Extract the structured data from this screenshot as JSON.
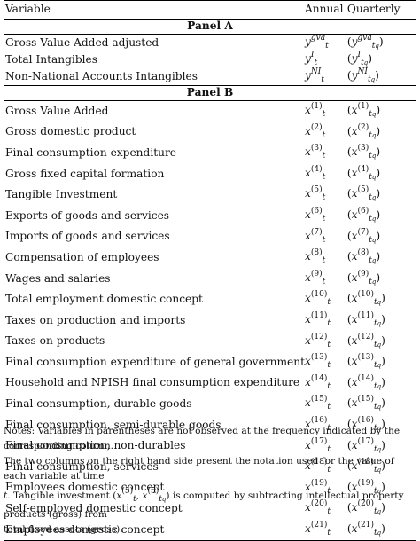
{
  "header": {
    "variable": "Variable",
    "annual": "Annual",
    "quarterly": "Quarterly"
  },
  "panel_a": {
    "title": "Panel A",
    "rows": [
      {
        "label": "Gross Value Added adjusted",
        "sup": "gva"
      },
      {
        "label": "Total Intangibles",
        "sup": "I"
      },
      {
        "label": "Non-National Accounts Intangibles",
        "sup": "NI"
      }
    ]
  },
  "panel_b": {
    "title": "Panel B",
    "rows": [
      {
        "label": "Gross Value Added",
        "sup": "(1)"
      },
      {
        "label": "Gross domestic product",
        "sup": "(2)"
      },
      {
        "label": "Final consumption expenditure",
        "sup": "(3)"
      },
      {
        "label": "Gross fixed capital formation",
        "sup": "(4)"
      },
      {
        "label": "Tangible Investment",
        "sup": "(5)"
      },
      {
        "label": "Exports of goods and services",
        "sup": "(6)"
      },
      {
        "label": "Imports of goods and services",
        "sup": "(7)"
      },
      {
        "label": "Compensation of employees",
        "sup": "(8)"
      },
      {
        "label": "Wages and salaries",
        "sup": "(9)"
      },
      {
        "label": "Total employment domestic concept",
        "sup": "(10)"
      },
      {
        "label": "Taxes on production and imports",
        "sup": "(11)"
      },
      {
        "label": "Taxes on products",
        "sup": "(12)"
      },
      {
        "label": "Final consumption expenditure of general government",
        "sup": "(13)"
      },
      {
        "label": "Household and NPISH final consumption expenditure",
        "sup": "(14)"
      },
      {
        "label": "Final consumption, durable goods",
        "sup": "(15)"
      },
      {
        "label": "Final consumption, semi-durable goods",
        "sup": "(16)"
      },
      {
        "label": "Final consumption, non-durables",
        "sup": "(17)"
      },
      {
        "label": "Final consumption, services",
        "sup": "(18)"
      },
      {
        "label": "Employees domestic concept",
        "sup": "(19)"
      },
      {
        "label": "Self-employed domestic concept",
        "sup": "(20)"
      },
      {
        "label": "Employees domestic concept",
        "sup": "(21)"
      }
    ]
  },
  "notes": {
    "line1": "Notes: Variables in parentheses are not observed at the frequency indicated by the corresponding column.",
    "line2": "The two columns on the right hand side present the notation used for the value of each variable at time",
    "line3a": "t",
    "line3b": ". Tangible investment (",
    "line3c": ") is computed by subtracting intellectual property products (gross) from",
    "line4": "total fixed assets (gross)."
  }
}
